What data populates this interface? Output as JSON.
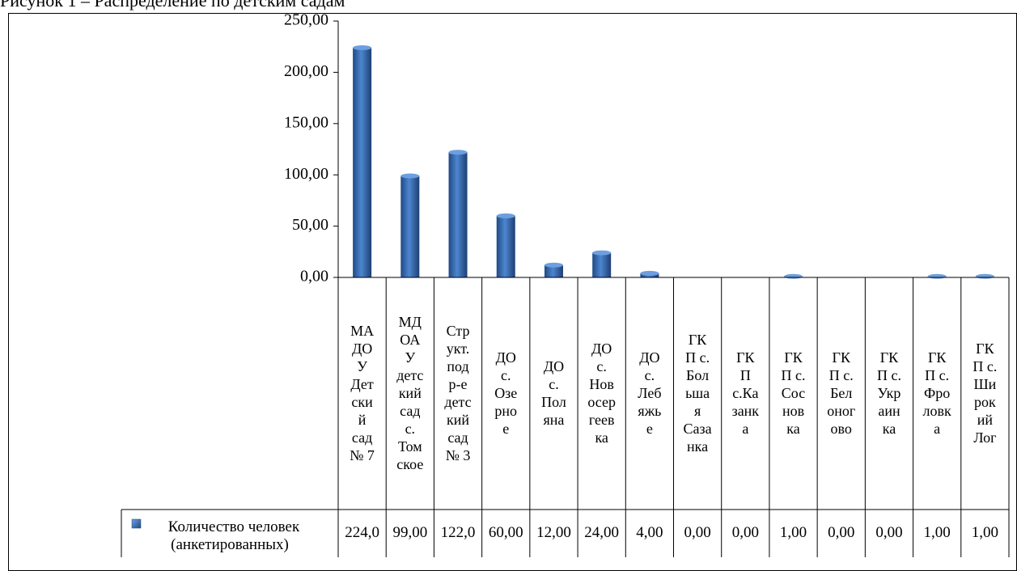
{
  "caption": "Рисунок 1 – Распределение по детским садам",
  "chart_data": {
    "type": "bar",
    "ylim": [
      0,
      250
    ],
    "yticks": [
      "250,00",
      "200,00",
      "150,00",
      "100,00",
      "50,00",
      "0,00"
    ],
    "grid": false,
    "legend": "bottom-left table",
    "categories": [
      "МАДОУ Детский сад № 7",
      "МДОАУ детский сад с. Томское",
      "Структ. подр-е детский сад № 3",
      "ДО с. Озерное",
      "ДО с. Поляна",
      "ДО с. Новосергеевка",
      "ДО с. Лебяжье",
      "ГКП с. Большая Сазанка",
      "ГКП с.Казанка",
      "ГКП с. Сосновка",
      "ГКП с. Белоногово",
      "ГКП с. Украинка",
      "ГКП с. Фроловка",
      "ГКП с. Широкий Лог"
    ],
    "category_lines": [
      [
        "МА",
        "ДО",
        "У",
        "Дет",
        "ски",
        "й",
        "сад",
        "№ 7"
      ],
      [
        "МД",
        "ОА",
        "У",
        "детс",
        "кий",
        "сад",
        "с.",
        "Том",
        "ское"
      ],
      [
        "Стр",
        "укт.",
        "под",
        "р-е",
        "детс",
        "кий",
        "сад",
        "№ 3"
      ],
      [
        "ДО",
        "с.",
        "Озе",
        "рно",
        "е"
      ],
      [
        "ДО",
        "с.",
        "Пол",
        "яна"
      ],
      [
        "ДО",
        "с.",
        "Нов",
        "осер",
        "геев",
        "ка"
      ],
      [
        "ДО",
        "с.",
        "Леб",
        "яжь",
        "е"
      ],
      [
        "ГК",
        "П с.",
        "Бол",
        "ьша",
        "я",
        "Саза",
        "нка"
      ],
      [
        "ГК",
        "П",
        "с.Ка",
        "занк",
        "а"
      ],
      [
        "ГК",
        "П с.",
        "Сос",
        "нов",
        "ка"
      ],
      [
        "ГК",
        "П с.",
        "Бел",
        "оног",
        "ово"
      ],
      [
        "ГК",
        "П с.",
        "Укр",
        "аин",
        "ка"
      ],
      [
        "ГК",
        "П с.",
        "Фро",
        "ловк",
        "а"
      ],
      [
        "ГК",
        "П с.",
        "Ши",
        "рок",
        "ий",
        "Лог"
      ]
    ],
    "series": [
      {
        "name": "Количество человек (анкетированных)",
        "name_lines": [
          "Количество человек",
          "(анкетированных)"
        ],
        "values": [
          224,
          99,
          122,
          60,
          12,
          24,
          4,
          0,
          0,
          1,
          0,
          0,
          1,
          1
        ],
        "value_labels": [
          "224,0",
          "99,00",
          "122,0",
          "60,00",
          "12,00",
          "24,00",
          "4,00",
          "0,00",
          "0,00",
          "1,00",
          "0,00",
          "0,00",
          "1,00",
          "1,00"
        ],
        "color": "#2f5f9e"
      }
    ]
  }
}
